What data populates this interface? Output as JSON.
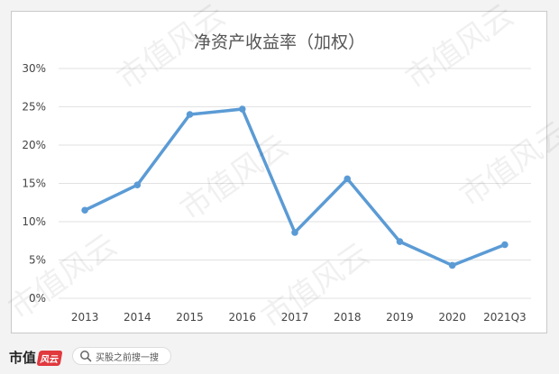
{
  "chart_data": {
    "type": "line",
    "title": "净资产收益率（加权）",
    "categories": [
      "2013",
      "2014",
      "2015",
      "2016",
      "2017",
      "2018",
      "2019",
      "2020",
      "2021Q3"
    ],
    "series": [
      {
        "values": [
          11.5,
          14.8,
          24.0,
          24.7,
          8.6,
          15.6,
          7.4,
          4.3,
          7.0
        ]
      }
    ],
    "y_ticks": [
      "0%",
      "5%",
      "10%",
      "15%",
      "20%",
      "25%",
      "30%"
    ],
    "ylim": [
      0,
      30
    ],
    "y_format": "percent",
    "grid": true,
    "line_color": "#5b9bd5"
  },
  "watermark": "市值风云",
  "footer": {
    "brand": "市值",
    "brand_mark": "风云",
    "search_text": "买股之前搜一搜",
    "search_icon": "search-icon"
  }
}
